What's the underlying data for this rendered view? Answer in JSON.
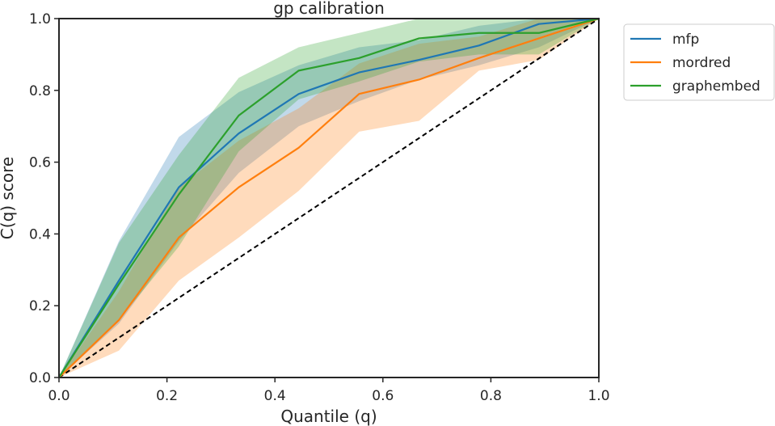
{
  "chart_data": {
    "type": "line",
    "title": "gp calibration",
    "xlabel": "Quantile (q)",
    "ylabel": "C(q) score",
    "xlim": [
      0.0,
      1.0
    ],
    "ylim": [
      0.0,
      1.0
    ],
    "x_ticks": [
      "0.0",
      "0.2",
      "0.4",
      "0.6",
      "0.8",
      "1.0"
    ],
    "y_ticks": [
      "0.0",
      "0.2",
      "0.4",
      "0.6",
      "0.8",
      "1.0"
    ],
    "grid": false,
    "legend_position": "outside-upper-right",
    "x": [
      0.0,
      0.111,
      0.222,
      0.333,
      0.444,
      0.556,
      0.667,
      0.778,
      0.889,
      1.0
    ],
    "series": [
      {
        "name": "mfp",
        "color": "#1f77b4",
        "values": [
          0.0,
          0.27,
          0.53,
          0.68,
          0.79,
          0.85,
          0.885,
          0.925,
          0.985,
          1.0
        ],
        "lower": [
          0.0,
          0.15,
          0.38,
          0.57,
          0.7,
          0.77,
          0.83,
          0.87,
          0.92,
          1.0
        ],
        "upper": [
          0.0,
          0.38,
          0.67,
          0.795,
          0.87,
          0.92,
          0.94,
          0.98,
          1.0,
          1.0
        ]
      },
      {
        "name": "mordred",
        "color": "#ff7f0e",
        "values": [
          0.0,
          0.16,
          0.39,
          0.53,
          0.64,
          0.79,
          0.83,
          0.89,
          0.945,
          1.0
        ],
        "lower": [
          0.0,
          0.075,
          0.27,
          0.39,
          0.52,
          0.685,
          0.715,
          0.855,
          0.885,
          1.0
        ],
        "upper": [
          0.0,
          0.24,
          0.53,
          0.66,
          0.75,
          0.875,
          0.93,
          0.95,
          1.0,
          1.0
        ]
      },
      {
        "name": "graphembed",
        "color": "#2ca02c",
        "values": [
          0.0,
          0.26,
          0.51,
          0.73,
          0.855,
          0.89,
          0.945,
          0.96,
          0.96,
          1.0
        ],
        "lower": [
          0.0,
          0.16,
          0.365,
          0.63,
          0.775,
          0.825,
          0.88,
          0.9,
          0.9,
          1.0
        ],
        "upper": [
          0.0,
          0.375,
          0.62,
          0.835,
          0.92,
          0.96,
          1.0,
          1.0,
          1.0,
          1.0
        ]
      }
    ],
    "reference_line": {
      "style": "dashed",
      "color": "#000000",
      "x": [
        0.0,
        1.0
      ],
      "y": [
        0.0,
        1.0
      ]
    }
  }
}
